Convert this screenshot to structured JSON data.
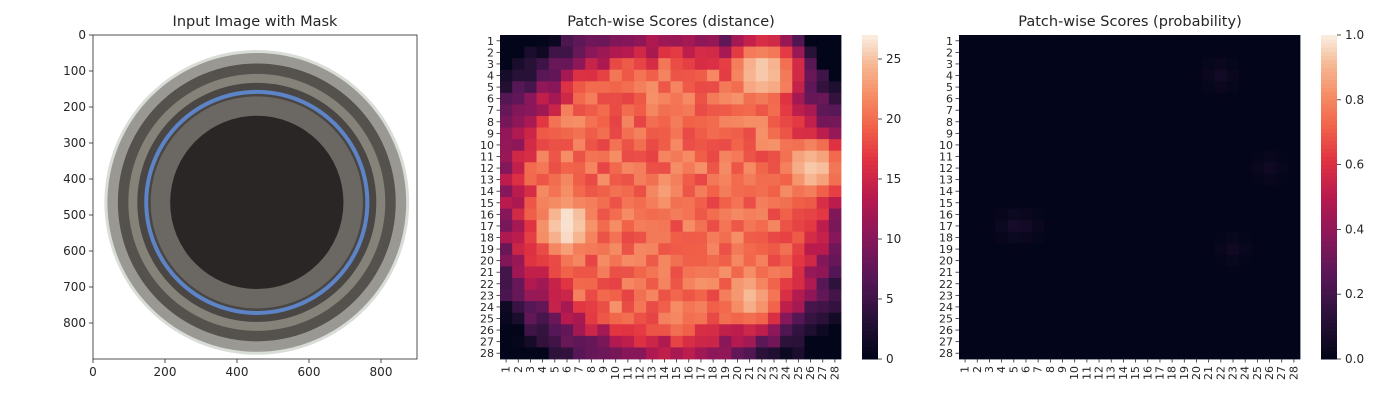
{
  "chart_data": [
    {
      "type": "image",
      "title": "Input Image with Mask",
      "xlim": [
        0,
        900
      ],
      "ylim": [
        900,
        0
      ],
      "xticks": [
        "0",
        "200",
        "400",
        "600",
        "800"
      ],
      "yticks": [
        "0",
        "100",
        "200",
        "300",
        "400",
        "500",
        "600",
        "700",
        "800"
      ],
      "image": {
        "subject": "glass bottle mouth viewed from above",
        "center": [
          455,
          465
        ],
        "outer_radius": 415,
        "colors": {
          "rim": "#9a9893",
          "ring": "#6b6863",
          "inner": "#2a2625",
          "highlight": "#5d84c6"
        }
      }
    },
    {
      "type": "heatmap",
      "title": "Patch-wise Scores (distance)",
      "grid": 28,
      "xticks": [
        "1",
        "2",
        "3",
        "4",
        "5",
        "6",
        "7",
        "8",
        "9",
        "10",
        "11",
        "12",
        "13",
        "14",
        "15",
        "16",
        "17",
        "18",
        "19",
        "20",
        "21",
        "22",
        "23",
        "24",
        "25",
        "26",
        "27",
        "28"
      ],
      "yticks": [
        "1",
        "2",
        "3",
        "4",
        "5",
        "6",
        "7",
        "8",
        "9",
        "10",
        "11",
        "12",
        "13",
        "14",
        "15",
        "16",
        "17",
        "18",
        "19",
        "20",
        "21",
        "22",
        "23",
        "24",
        "25",
        "26",
        "27",
        "28"
      ],
      "colorbar": {
        "min": 0,
        "max": 27,
        "ticks": [
          "0",
          "5",
          "10",
          "15",
          "20",
          "25"
        ],
        "colormap": "rocket"
      },
      "values_model": {
        "base": 20,
        "edge_value": 12,
        "hotspots": [
          {
            "row": 17,
            "col": 6,
            "value": 27
          },
          {
            "row": 4,
            "col": 22,
            "value": 26
          },
          {
            "row": 12,
            "col": 26,
            "value": 25.5
          },
          {
            "row": 23,
            "col": 21,
            "value": 24.5
          },
          {
            "row": 14,
            "col": 14,
            "value": 23
          }
        ],
        "coldspots": [
          {
            "row": 1,
            "col": 1,
            "value": 2
          },
          {
            "row": 2,
            "col": 27,
            "value": 1
          },
          {
            "row": 27,
            "col": 2,
            "value": 1
          },
          {
            "row": 2,
            "col": 6,
            "value": 5
          },
          {
            "row": 3,
            "col": 3,
            "value": 5
          },
          {
            "row": 26,
            "col": 25,
            "value": 4
          },
          {
            "row": 25,
            "col": 1,
            "value": 6
          }
        ]
      }
    },
    {
      "type": "heatmap",
      "title": "Patch-wise Scores (probability)",
      "grid": 28,
      "xticks": [
        "1",
        "2",
        "3",
        "4",
        "5",
        "6",
        "7",
        "8",
        "9",
        "10",
        "11",
        "12",
        "13",
        "14",
        "15",
        "16",
        "17",
        "18",
        "19",
        "20",
        "21",
        "22",
        "23",
        "24",
        "25",
        "26",
        "27",
        "28"
      ],
      "yticks": [
        "1",
        "2",
        "3",
        "4",
        "5",
        "6",
        "7",
        "8",
        "9",
        "10",
        "11",
        "12",
        "13",
        "14",
        "15",
        "16",
        "17",
        "18",
        "19",
        "20",
        "21",
        "22",
        "23",
        "24",
        "25",
        "26",
        "27",
        "28"
      ],
      "colorbar": {
        "min": 0.0,
        "max": 1.0,
        "ticks": [
          "0.0",
          "0.2",
          "0.4",
          "0.6",
          "0.8",
          "1.0"
        ],
        "colormap": "rocket"
      },
      "values_model": {
        "base": 0.0,
        "hotspots": [
          {
            "row": 17,
            "col": 5,
            "value": 0.06
          },
          {
            "row": 17,
            "col": 6,
            "value": 0.05
          },
          {
            "row": 4,
            "col": 22,
            "value": 0.05
          },
          {
            "row": 12,
            "col": 26,
            "value": 0.04
          },
          {
            "row": 19,
            "col": 23,
            "value": 0.04
          }
        ]
      }
    }
  ]
}
